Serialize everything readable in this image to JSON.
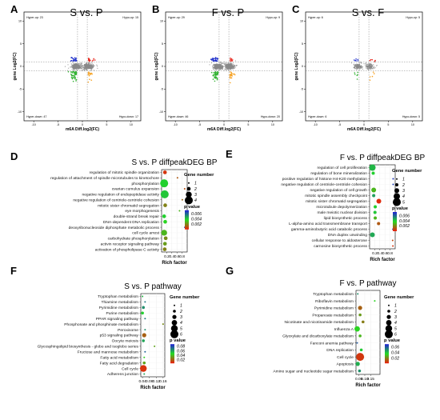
{
  "colors": {
    "high": "#1f1fd6",
    "mid": "#22dd22",
    "low": "#f01a0a"
  },
  "chart_data": [
    {
      "id": "A",
      "type": "scatter",
      "panel_label": "A",
      "title": "S vs. P",
      "xlabel": "m6A Diff.log2(FC)",
      "ylabel": "gene Log2(FC)",
      "xlim": [
        -12,
        12
      ],
      "ylim": [
        -12,
        12
      ],
      "xticks": [
        "-10",
        "-5",
        "0",
        "5",
        "10"
      ],
      "yticks": [
        "-10",
        "-5",
        "0",
        "5",
        "10"
      ],
      "quadrants": {
        "tl": "Hyper-up: 23",
        "tr": "Hypo-up: 15",
        "bl": "Hyper-down: 47",
        "br": "Hypo-down: 17"
      },
      "counts": {
        "blue": 23,
        "red": 15,
        "green": 47,
        "orange": 17
      }
    },
    {
      "id": "B",
      "type": "scatter",
      "panel_label": "B",
      "title": "F vs. P",
      "xlabel": "m6A Diff.log2(FC)",
      "ylabel": "gene Log2(FC)",
      "xlim": [
        -12,
        12
      ],
      "ylim": [
        -12,
        12
      ],
      "xticks": [
        "-10",
        "-5",
        "0",
        "5",
        "10"
      ],
      "yticks": [
        "-10",
        "-5",
        "0",
        "5",
        "10"
      ],
      "quadrants": {
        "tl": "Hyper-up: 29",
        "tr": "Hypo-up: 9",
        "bl": "Hyper-down: 46",
        "br": "Hypo-down: 20"
      },
      "counts": {
        "blue": 29,
        "red": 9,
        "green": 46,
        "orange": 20
      }
    },
    {
      "id": "C",
      "type": "scatter",
      "panel_label": "C",
      "title": "S vs. F",
      "xlabel": "m6A Diff.log2(FC)",
      "ylabel": "gene Log2(FC)",
      "xlim": [
        -12,
        12
      ],
      "ylim": [
        -12,
        12
      ],
      "xticks": [
        "-10",
        "-5",
        "0",
        "5",
        "10"
      ],
      "yticks": [
        "-10",
        "-5",
        "0",
        "5",
        "10"
      ],
      "quadrants": {
        "tl": "Hyper-up: 6",
        "tr": "Hypo-up: 5",
        "bl": "Hyper-down: 6",
        "br": "Hypo-down: 5"
      },
      "counts": {
        "blue": 6,
        "red": 5,
        "green": 6,
        "orange": 5
      }
    },
    {
      "id": "D",
      "type": "scatter",
      "panel_label": "D",
      "title": "S vs. P diffpeakDEG BP",
      "xlabel": "Rich factor",
      "xlim": [
        0,
        1.0
      ],
      "xticks": [
        "0.2",
        "0.4",
        "0.6",
        "0.8"
      ],
      "size_legend": {
        "title": "Gene number",
        "values": [
          "1",
          "2",
          "3",
          "4"
        ]
      },
      "color_legend": {
        "title": "p value",
        "ticks": [
          "0.006",
          "0.004",
          "0.002"
        ],
        "range": [
          0,
          0.0075
        ]
      },
      "terms": [
        {
          "name": "regulation of mitotic spindle organization",
          "x": 0.13,
          "n": 2,
          "p": 0.0005
        },
        {
          "name": "regulation of attachment of spindle microtubules to kinetochore",
          "x": 0.62,
          "n": 1,
          "p": 0.0012
        },
        {
          "name": "phosphorylation",
          "x": 0.1,
          "n": 4,
          "p": 0.004
        },
        {
          "name": "ovarian cumulus expansion",
          "x": 0.9,
          "n": 1,
          "p": 0.001
        },
        {
          "name": "negative regulation of endopeptidase activity",
          "x": 0.12,
          "n": 4,
          "p": 0.0042
        },
        {
          "name": "negative regulation of centriole-centriole cohesion",
          "x": 0.81,
          "n": 1,
          "p": 0.0015
        },
        {
          "name": "mitotic sister chromatid segregation",
          "x": 0.14,
          "n": 2,
          "p": 0.002
        },
        {
          "name": "eye morphogenesis",
          "x": 0.7,
          "n": 1,
          "p": 0.003
        },
        {
          "name": "double-strand break repair",
          "x": 0.1,
          "n": 2,
          "p": 0.004
        },
        {
          "name": "DNA-dependent DNA replication",
          "x": 0.14,
          "n": 2,
          "p": 0.0036
        },
        {
          "name": "deoxyribonucleoside diphosphate metabolic process",
          "x": 0.91,
          "n": 1,
          "p": 0.007
        },
        {
          "name": "cell cycle arrest",
          "x": 0.1,
          "n": 3,
          "p": 0.003
        },
        {
          "name": "carbohydrate phosphorylation",
          "x": 0.16,
          "n": 2,
          "p": 0.0022
        },
        {
          "name": "activin receptor signaling pathway",
          "x": 0.13,
          "n": 2,
          "p": 0.0025
        },
        {
          "name": "activation of phospholipase C activity",
          "x": 0.12,
          "n": 2,
          "p": 0.002
        }
      ]
    },
    {
      "id": "E",
      "type": "scatter",
      "panel_label": "E",
      "title": "F vs. P diffpeakDEG BP",
      "xlabel": "Rich factor",
      "xlim": [
        0,
        1.0
      ],
      "xticks": [
        "0.2",
        "0.4",
        "0.6",
        "0.8"
      ],
      "size_legend": {
        "title": "Gene number",
        "values": [
          "1",
          "2",
          "3",
          "4",
          "5"
        ]
      },
      "color_legend": {
        "title": "p value",
        "ticks": [
          "0.006",
          "0.004",
          "0.002"
        ],
        "range": [
          0,
          0.0075
        ]
      },
      "terms": [
        {
          "name": "regulation of cell proliferation",
          "x": 0.11,
          "n": 4,
          "p": 0.0045
        },
        {
          "name": "regulation of bone mineralization",
          "x": 0.14,
          "n": 2,
          "p": 0.004
        },
        {
          "name": "positive regulation of histone H4-K20 methylation",
          "x": 0.92,
          "n": 1,
          "p": 0.007
        },
        {
          "name": "negative regulation of centriole-centriole cohesion",
          "x": 0.92,
          "n": 1,
          "p": 0.0068
        },
        {
          "name": "negative regulation of cell growth",
          "x": 0.16,
          "n": 3,
          "p": 0.003
        },
        {
          "name": "mitotic spindle assembly checkpoint",
          "x": 0.16,
          "n": 2,
          "p": 0.005
        },
        {
          "name": "mitotic sister chromatid segregation",
          "x": 0.36,
          "n": 3,
          "p": 0.0003
        },
        {
          "name": "microtubule depolymerization",
          "x": 0.22,
          "n": 2,
          "p": 0.004
        },
        {
          "name": "male meiotic nuclear division",
          "x": 0.21,
          "n": 2,
          "p": 0.0042
        },
        {
          "name": "lipid biosynthetic process",
          "x": 0.22,
          "n": 2,
          "p": 0.003
        },
        {
          "name": "L-alpha-amino acid transmembrane transport",
          "x": 0.35,
          "n": 2,
          "p": 0.0012
        },
        {
          "name": "gamma-aminobutyric acid catabolic process",
          "x": 0.91,
          "n": 1,
          "p": 0.007
        },
        {
          "name": "DNA duplex unwinding",
          "x": 0.11,
          "n": 3,
          "p": 0.0048
        },
        {
          "name": "cellular response to aldosterone",
          "x": 0.9,
          "n": 1,
          "p": 0.0008
        },
        {
          "name": "carnosine biosynthetic process",
          "x": 0.91,
          "n": 1,
          "p": 0.0005
        }
      ]
    },
    {
      "id": "F",
      "type": "scatter",
      "panel_label": "F",
      "title": "S vs. P pathway",
      "xlabel": "Rich factor",
      "xlim": [
        0.03,
        0.17
      ],
      "xticks": [
        "0.04",
        "0.08",
        "0.12",
        "0.16"
      ],
      "size_legend": {
        "title": "Gene number",
        "values": [
          "1",
          "2",
          "3",
          "4",
          "5",
          "6"
        ]
      },
      "color_legend": {
        "title": "p value",
        "ticks": [
          "0.08",
          "0.06",
          "0.04",
          "0.02"
        ],
        "range": [
          0.005,
          0.09
        ]
      },
      "terms": [
        {
          "name": "Tryptophan metabolism",
          "x": 0.04,
          "n": 1,
          "p": 0.055
        },
        {
          "name": "Thiamine metabolism",
          "x": 0.055,
          "n": 1,
          "p": 0.07
        },
        {
          "name": "Pyrimidine metabolism",
          "x": 0.045,
          "n": 2,
          "p": 0.065
        },
        {
          "name": "Purine metabolism",
          "x": 0.04,
          "n": 2,
          "p": 0.05
        },
        {
          "name": "PPAR signaling pathway",
          "x": 0.055,
          "n": 1,
          "p": 0.07
        },
        {
          "name": "Phosphonate and phosphinate metabolism",
          "x": 0.16,
          "n": 1,
          "p": 0.03
        },
        {
          "name": "Peroxisome",
          "x": 0.055,
          "n": 1,
          "p": 0.065
        },
        {
          "name": "p53 signaling pathway",
          "x": 0.05,
          "n": 3,
          "p": 0.02
        },
        {
          "name": "Oocyte meiosis",
          "x": 0.045,
          "n": 2,
          "p": 0.06
        },
        {
          "name": "Glycosphingolipid biosynthesis - globo and isoglobo series",
          "x": 0.11,
          "n": 1,
          "p": 0.035
        },
        {
          "name": "Fructose and mannose metabolism",
          "x": 0.055,
          "n": 1,
          "p": 0.075
        },
        {
          "name": "Fatty acid metabolism",
          "x": 0.05,
          "n": 1,
          "p": 0.045
        },
        {
          "name": "Fatty acid degradation",
          "x": 0.05,
          "n": 2,
          "p": 0.035
        },
        {
          "name": "Cell cycle",
          "x": 0.045,
          "n": 5,
          "p": 0.01
        },
        {
          "name": "Adherens junction",
          "x": 0.05,
          "n": 1,
          "p": 0.06
        }
      ]
    },
    {
      "id": "G",
      "type": "scatter",
      "panel_label": "G",
      "title": "F vs. P pathway",
      "xlabel": "Rich factor",
      "xlim": [
        0.025,
        0.23
      ],
      "xticks": [
        "0.05",
        "0.10",
        "0.15"
      ],
      "size_legend": {
        "title": "Gene number",
        "values": [
          "1",
          "2",
          "3",
          "4",
          "5",
          "6"
        ]
      },
      "color_legend": {
        "title": "p value",
        "ticks": [
          "0.06",
          "0.04",
          "0.02"
        ],
        "range": [
          0.003,
          0.07
        ]
      },
      "terms": [
        {
          "name": "Tryptophan metabolism",
          "x": 0.04,
          "n": 1,
          "p": 0.05
        },
        {
          "name": "Riboflavin metabolism",
          "x": 0.185,
          "n": 1,
          "p": 0.035
        },
        {
          "name": "Pyrimidine metabolism",
          "x": 0.06,
          "n": 3,
          "p": 0.015
        },
        {
          "name": "Propanoate metabolism",
          "x": 0.06,
          "n": 2,
          "p": 0.025
        },
        {
          "name": "Nicotinate and nicotinamide metabolism",
          "x": 0.085,
          "n": 2,
          "p": 0.02
        },
        {
          "name": "Influenza A",
          "x": 0.035,
          "n": 4,
          "p": 0.035
        },
        {
          "name": "Glyoxylate and dicarboxylate metabolism",
          "x": 0.06,
          "n": 2,
          "p": 0.03
        },
        {
          "name": "Fanconi anemia pathway",
          "x": 0.035,
          "n": 1,
          "p": 0.06
        },
        {
          "name": "DNA replication",
          "x": 0.07,
          "n": 2,
          "p": 0.04
        },
        {
          "name": "Cell cycle",
          "x": 0.06,
          "n": 6,
          "p": 0.008
        },
        {
          "name": "Apoptosis",
          "x": 0.04,
          "n": 3,
          "p": 0.045
        },
        {
          "name": "Amino sugar and nucleotide sugar metabolism",
          "x": 0.055,
          "n": 2,
          "p": 0.05
        }
      ]
    }
  ]
}
